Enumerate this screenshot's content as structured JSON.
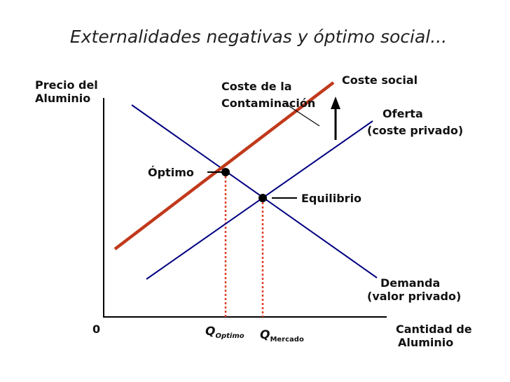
{
  "title": "Externalidades negativas y óptimo social...",
  "axes": {
    "y_label_line1": "Precio del",
    "y_label_line2": "Aluminio",
    "x_label_line1": "Cantidad de",
    "x_label_line2": "Aluminio",
    "origin": "0"
  },
  "curves": {
    "social_cost": "Coste social",
    "pollution_line1": "Coste de la",
    "pollution_line2": "Contaminación",
    "supply_line1": "Oferta",
    "supply_line2": "(coste privado)",
    "demand_line1": "Demanda",
    "demand_line2": "(valor privado)"
  },
  "points": {
    "optimum": "Óptimo",
    "equilibrium": "Equilibrio"
  },
  "quantities": {
    "q_symbol": "Q",
    "optimum_sub": "Optimo",
    "market_sub": "Mercado"
  },
  "colors": {
    "demand_supply": "#000080",
    "social_cost": "#c0391b",
    "dotted": "#e0402a",
    "axis": "#000000"
  }
}
